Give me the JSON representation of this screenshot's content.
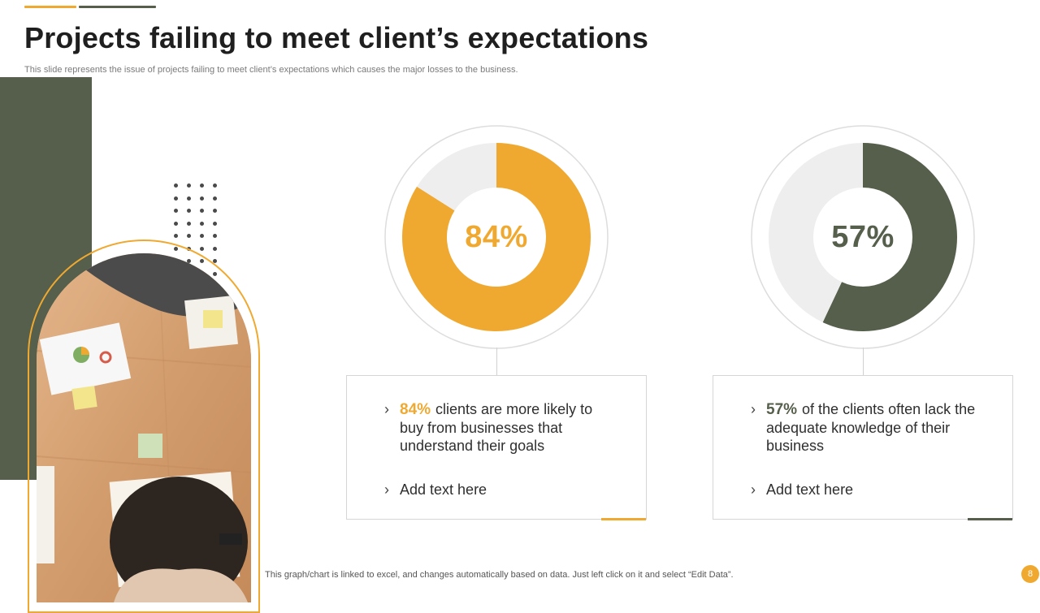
{
  "slide": {
    "title": "Projects failing to meet client’s expectations",
    "subtitle": "This slide represents the issue of projects failing to meet client’s expectations which causes the major losses to the business.",
    "footnote": "This graph/chart is linked to excel,  and changes automatically based on data. Just left click on it and select “Edit Data”.",
    "page_number": "8"
  },
  "colors": {
    "accent_orange": "#f0a930",
    "accent_green": "#555f4b",
    "track_gray": "#eeeeee"
  },
  "cards": [
    {
      "percent_label": "84%",
      "main_text": "clients are more likely to buy from businesses that understand their goals",
      "secondary_text": "Add text here"
    },
    {
      "percent_label": "57%",
      "main_text": "of the clients often lack the adequate knowledge of their business",
      "secondary_text": "Add text here"
    }
  ],
  "chart_data": [
    {
      "type": "pie",
      "variant": "donut",
      "value_label": "84%",
      "values": [
        84,
        16
      ],
      "colors": [
        "#f0a930",
        "#eeeeee"
      ]
    },
    {
      "type": "pie",
      "variant": "donut",
      "value_label": "57%",
      "values": [
        57,
        43
      ],
      "colors": [
        "#555f4b",
        "#eeeeee"
      ]
    }
  ]
}
